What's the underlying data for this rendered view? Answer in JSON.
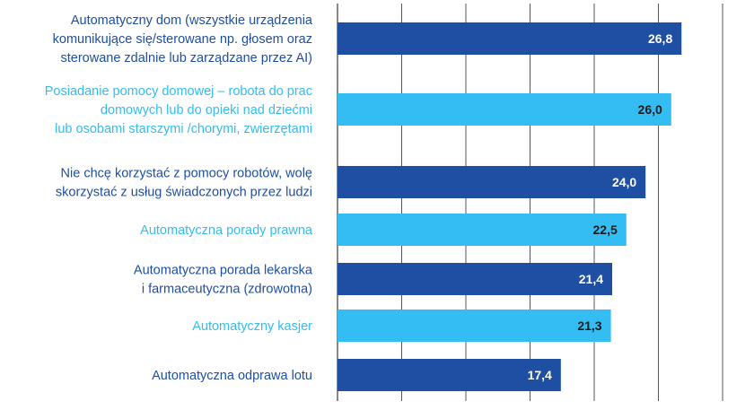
{
  "chart_data": {
    "type": "bar",
    "orientation": "horizontal",
    "categories": [
      [
        "Automatyczny dom (wszystkie urządzenia",
        "komunikujące się/sterowane np. głosem oraz",
        "sterowane zdalnie lub zarządzane przez AI)"
      ],
      [
        "Posiadanie pomocy domowej – robota do prac",
        "domowych lub do opieki nad dziećmi",
        "lub osobami starszymi /chorymi, zwierzętami"
      ],
      [
        "Nie chcę korzystać z pomocy robotów, wolę",
        "skorzystać z usług świadczonych przez ludzi"
      ],
      [
        "Automatyczna porady prawna"
      ],
      [
        "Automatyczna porada lekarska",
        "i farmaceutyczna (zdrowotna)"
      ],
      [
        "Automatyczny kasjer"
      ],
      [
        "Automatyczna odprawa lotu"
      ]
    ],
    "values": [
      26.8,
      26.0,
      24.0,
      22.5,
      21.4,
      21.3,
      17.4
    ],
    "value_labels": [
      "26,8",
      "26,0",
      "24,0",
      "22,5",
      "21,4",
      "21,3",
      "17,4"
    ],
    "xlim": [
      0,
      30
    ],
    "grid": true,
    "legend": "none",
    "colors": {
      "dark": "#1f4fa2",
      "light": "#33bdf2",
      "grid": "#555555",
      "label_dark_text": "#1f4fa2",
      "label_light_text": "#33bdf2",
      "value_on_dark": "#ffffff",
      "value_on_light": "#1a1a1a"
    },
    "bar_color_keys": [
      "dark",
      "light",
      "dark",
      "light",
      "dark",
      "light",
      "dark"
    ]
  }
}
